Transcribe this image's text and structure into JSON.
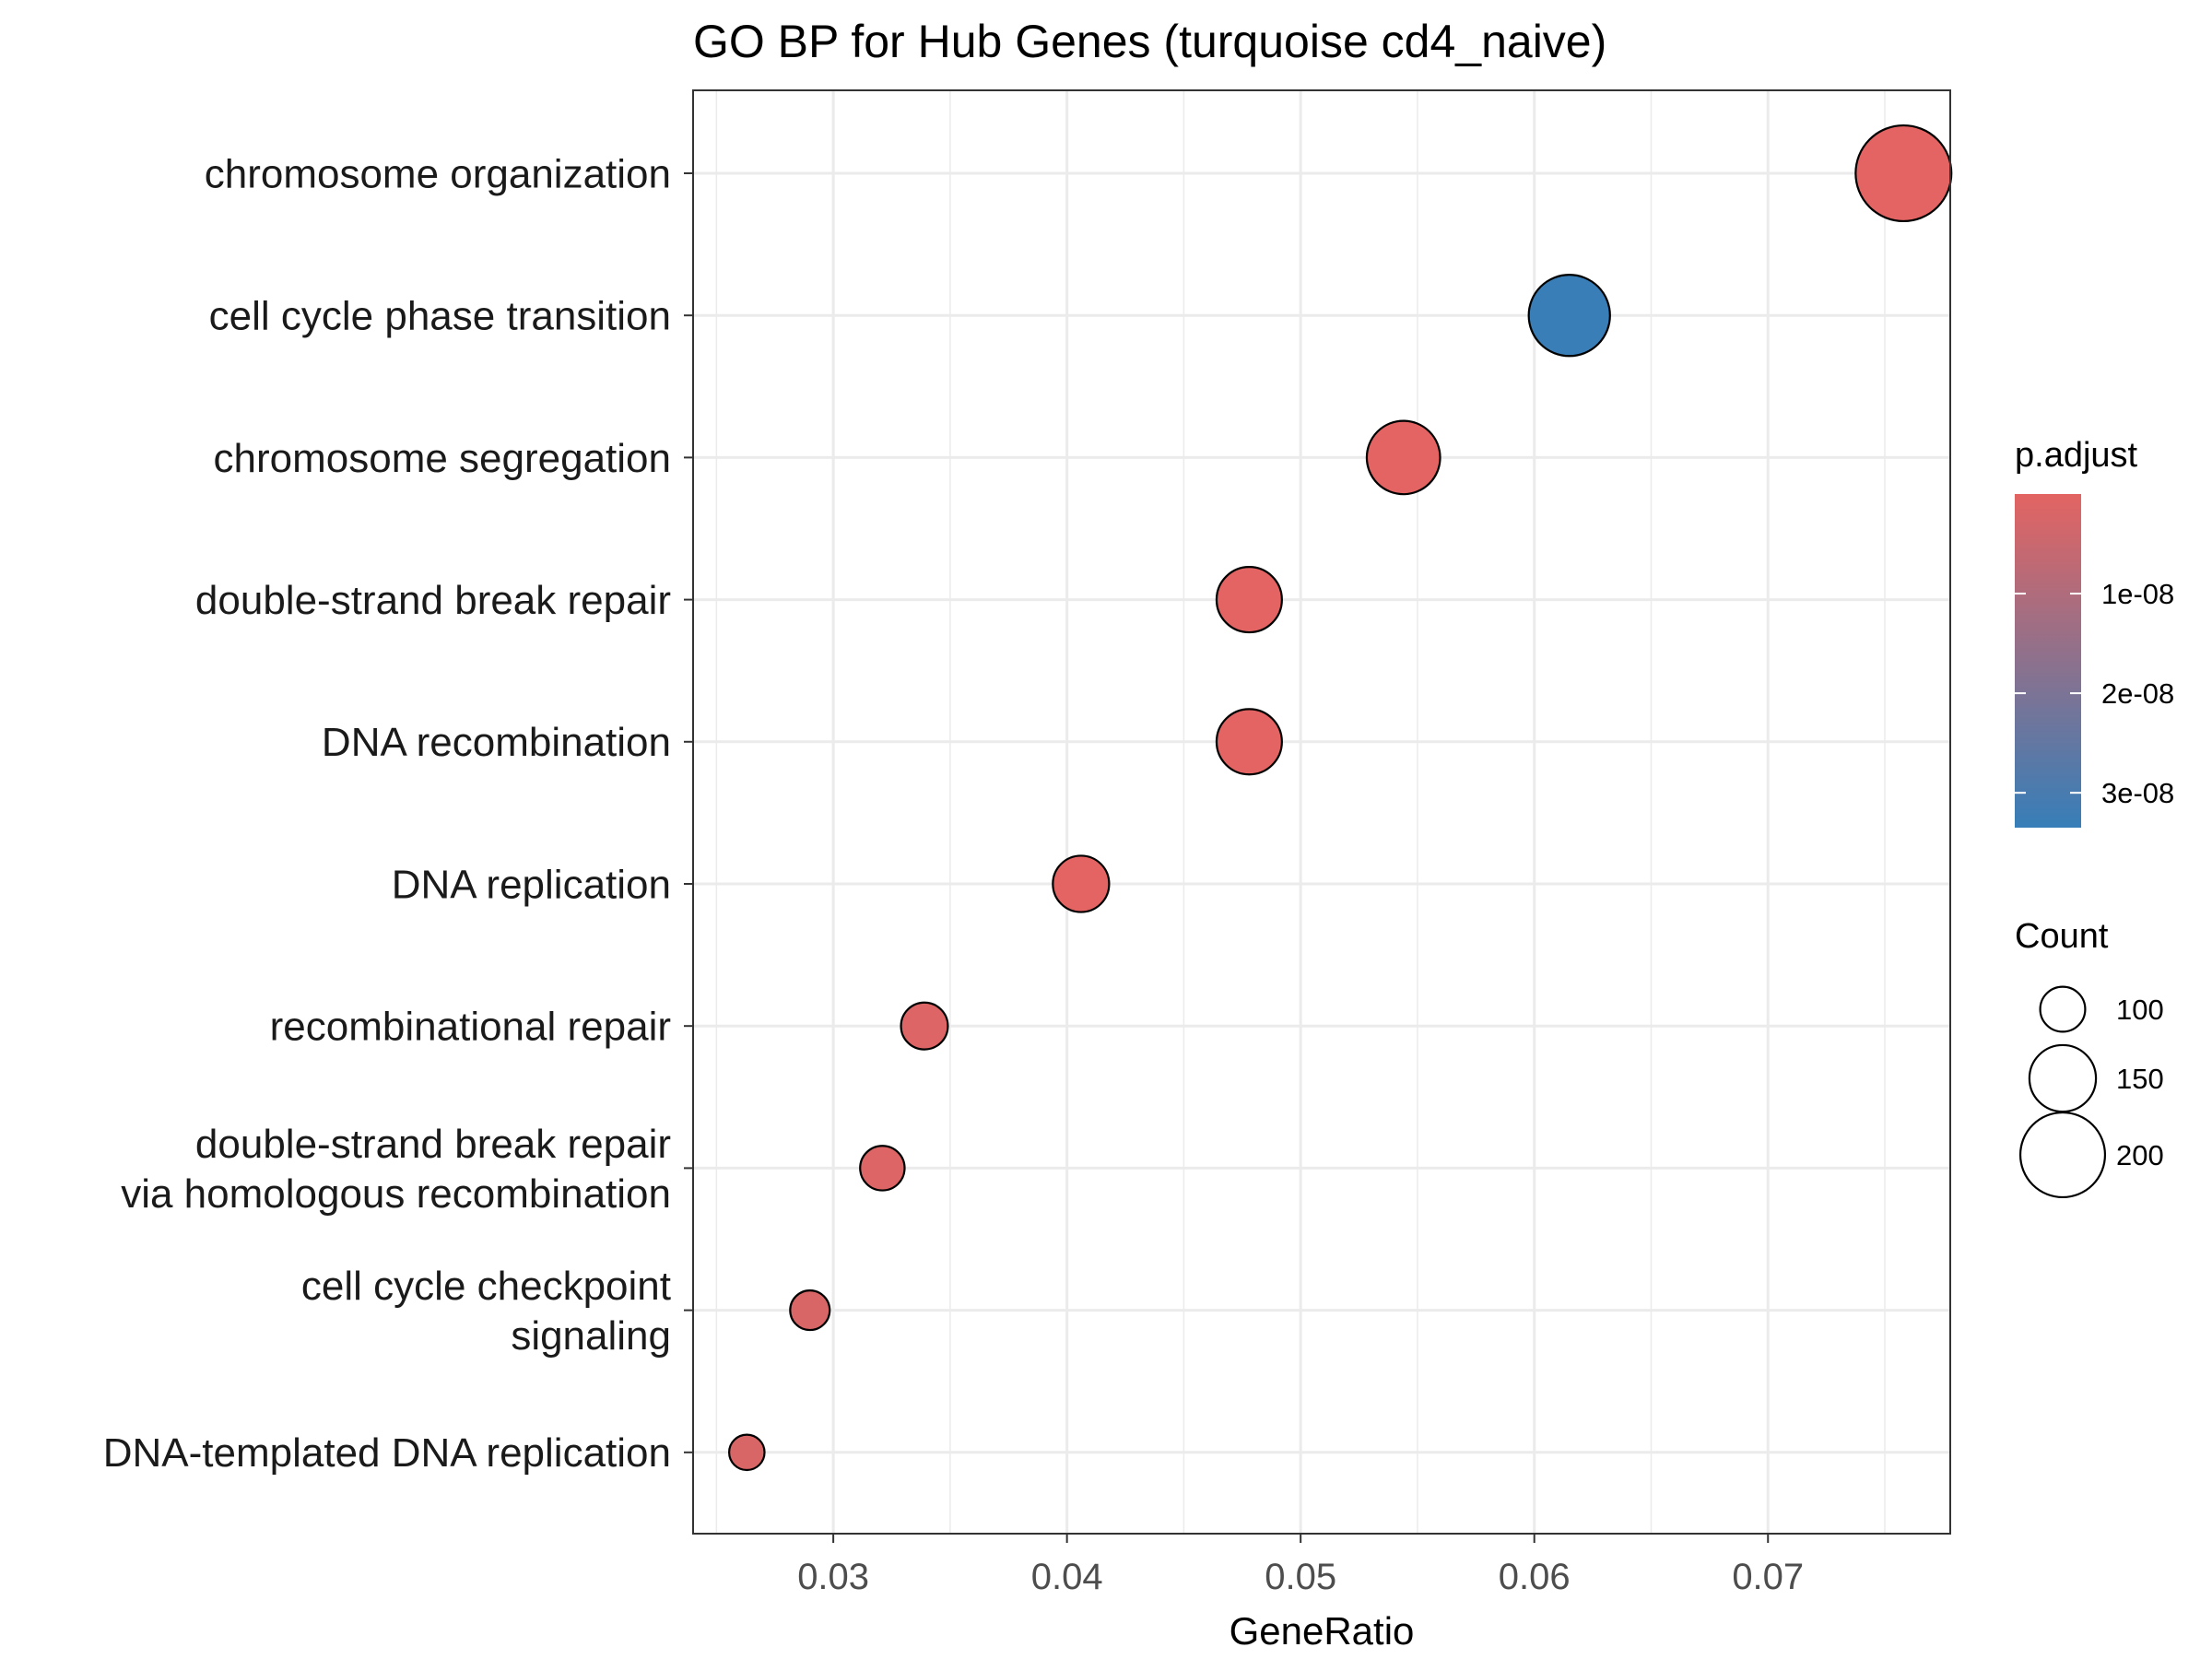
{
  "chart_data": {
    "type": "scatter",
    "title": "GO BP for Hub Genes (turquoise cd4_naive)",
    "xlabel": "GeneRatio",
    "ylabel": "",
    "xlim": [
      0.024,
      0.0778
    ],
    "x_ticks": [
      "0.03",
      "0.04",
      "0.05",
      "0.06",
      "0.07"
    ],
    "x_tick_values": [
      0.03,
      0.04,
      0.05,
      0.06,
      0.07
    ],
    "grid": true,
    "categories": [
      "chromosome organization",
      "cell cycle phase transition",
      "chromosome segregation",
      "double-strand break repair",
      "DNA recombination",
      "DNA replication",
      "recombinational repair",
      "double-strand break repair via homologous recombination",
      "cell cycle checkpoint signaling",
      "DNA-templated DNA replication"
    ],
    "category_lines": [
      [
        "chromosome organization"
      ],
      [
        "cell cycle phase transition"
      ],
      [
        "chromosome segregation"
      ],
      [
        "double-strand break repair"
      ],
      [
        "DNA recombination"
      ],
      [
        "DNA replication"
      ],
      [
        "recombinational repair"
      ],
      [
        "double-strand break repair",
        "via homologous recombination"
      ],
      [
        "cell cycle checkpoint",
        "signaling"
      ],
      [
        "DNA-templated DNA replication"
      ]
    ],
    "gene_ratio": [
      0.0758,
      0.0615,
      0.0544,
      0.0478,
      0.0478,
      0.0406,
      0.0339,
      0.0321,
      0.029,
      0.0263
    ],
    "count": [
      234,
      190,
      168,
      147,
      147,
      125,
      104,
      99,
      89,
      81
    ],
    "p_adjust": [
      0.0,
      3.3e-08,
      0.0,
      0.0,
      0.0,
      0.0,
      1e-09,
      1e-09,
      2e-09,
      2e-09
    ],
    "color_legend": {
      "title": "p.adjust",
      "low_color": "#E36462",
      "high_color": "#377EB8",
      "range": [
        0,
        3.35e-08
      ],
      "ticks": [
        "1e-08",
        "2e-08",
        "3e-08"
      ],
      "tick_values": [
        1e-08,
        2e-08,
        3e-08
      ]
    },
    "size_legend": {
      "title": "Count",
      "labels": [
        "100",
        "150",
        "200"
      ],
      "values": [
        100,
        150,
        200
      ]
    },
    "legend_position": "right"
  }
}
